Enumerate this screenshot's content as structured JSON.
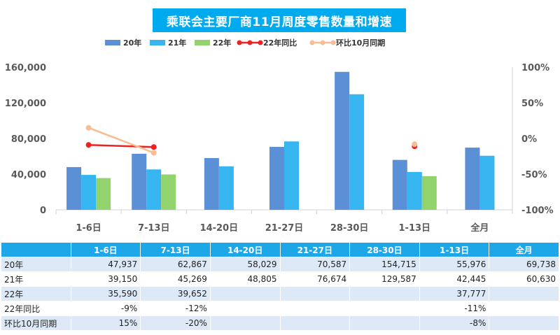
{
  "chart_data": {
    "type": "bar",
    "title": "乘联会主要厂商11月周度零售数量和增速",
    "categories": [
      "1-6日",
      "7-13日",
      "14-20日",
      "21-27日",
      "28-30日",
      "1-13日",
      "全月"
    ],
    "series": [
      {
        "name": "20年",
        "values": [
          47937,
          62867,
          58029,
          70587,
          154715,
          55976,
          69738
        ],
        "color": "#5b8fd6"
      },
      {
        "name": "21年",
        "values": [
          39150,
          45269,
          48805,
          76674,
          129587,
          42445,
          60630
        ],
        "color": "#36b5f0"
      },
      {
        "name": "22年",
        "values": [
          35590,
          39652,
          null,
          null,
          null,
          37777,
          null
        ],
        "color": "#93d36e"
      }
    ],
    "line_series": [
      {
        "name": "22年同比",
        "values": [
          -9,
          -12,
          null,
          null,
          null,
          -11,
          null
        ],
        "color": "#ee2222"
      },
      {
        "name": "环比10月同期",
        "values": [
          15,
          -20,
          null,
          null,
          null,
          -8,
          null
        ],
        "color": "#f8bd92"
      }
    ],
    "ylim": [
      0,
      160000
    ],
    "yticks": [
      0,
      40000,
      80000,
      120000,
      160000
    ],
    "ytick_labels": [
      "0",
      "40,000",
      "80,000",
      "120,000",
      "160,000"
    ],
    "y2lim": [
      -100,
      100
    ],
    "y2ticks": [
      -100,
      -50,
      0,
      50,
      100
    ],
    "y2tick_labels": [
      "-100%",
      "-50%",
      "0%",
      "50%",
      "100%"
    ],
    "legend_position": "top",
    "grid": false
  },
  "table": {
    "header": [
      "",
      "1-6日",
      "7-13日",
      "14-20日",
      "21-27日",
      "28-30日",
      "1-13日",
      "全月"
    ],
    "rows": [
      {
        "label": "20年",
        "cells": [
          "47,937",
          "62,867",
          "58,029",
          "70,587",
          "154,715",
          "55,976",
          "69,738"
        ]
      },
      {
        "label": "21年",
        "cells": [
          "39,150",
          "45,269",
          "48,805",
          "76,674",
          "129,587",
          "42,445",
          "60,630"
        ]
      },
      {
        "label": "22年",
        "cells": [
          "35,590",
          "39,652",
          "",
          "",
          "",
          "37,777",
          ""
        ]
      },
      {
        "label": "22年同比",
        "cells": [
          "-9%",
          "-12%",
          "",
          "",
          "",
          "-11%",
          ""
        ]
      },
      {
        "label": "环比10月同期",
        "cells": [
          "15%",
          "-20%",
          "",
          "",
          "",
          "-8%",
          ""
        ]
      }
    ]
  }
}
